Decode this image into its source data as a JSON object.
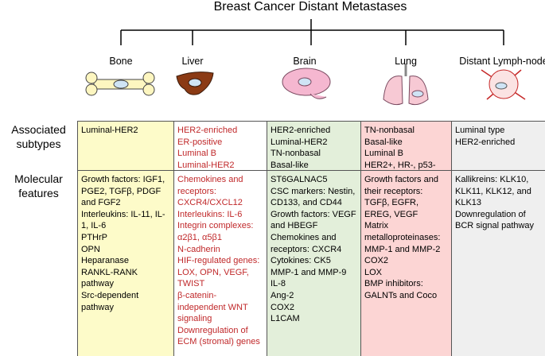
{
  "title": "Breast Cancer Distant Metastases",
  "organs": [
    "Bone",
    "Liver",
    "Brain",
    "Lung",
    "Distant Lymph-node"
  ],
  "rows": [
    {
      "label": "Associated subtypes",
      "cells": [
        [
          "Luminal-HER2"
        ],
        [
          "HER2-enriched",
          "ER-positive",
          "Luminal B",
          "Luminal-HER2"
        ],
        [
          "HER2-enriched",
          "Luminal-HER2",
          "TN-nonbasal",
          "Basal-like"
        ],
        [
          "TN-nonbasal",
          "Basal-like",
          "Luminal B",
          "HER2+, HR-, p53-"
        ],
        [
          "Luminal type",
          "HER2-enriched"
        ]
      ]
    },
    {
      "label": "Molecular features",
      "cells": [
        [
          "Growth factors: IGF1, PGE2, TGFβ, PDGF and FGF2",
          "Interleukins: IL-11, IL-1, IL-6",
          "PTHrP",
          "OPN",
          "Heparanase",
          "RANKL-RANK pathway",
          "Src-dependent pathway"
        ],
        [
          "Chemokines and receptors: CXCR4/CXCL12",
          "Interleukins: IL-6",
          "Integrin complexes: α2β1, α5β1",
          "N-cadherin",
          "HIF-regulated genes: LOX, OPN, VEGF, TWIST",
          "β-catenin-independent WNT signaling",
          "Downregulation of ECM (stromal) genes"
        ],
        [
          "ST6GALNAC5",
          "CSC markers: Nestin, CD133, and CD44",
          "Growth factors: VEGF and HBEGF",
          "Chemokines and receptors: CXCR4",
          "Cytokines: CK5",
          "MMP-1 and MMP-9",
          "IL-8",
          "Ang-2",
          "COX2",
          "L1CAM"
        ],
        [
          "Growth factors and their receptors: TGFβ, EGFR, EREG, VEGF",
          "Matrix metalloproteinases: MMP-1 and MMP-2",
          "COX2",
          "LOX",
          "BMP inhibitors: GALNTs and Coco"
        ],
        [
          "Kallikreins: KLK10, KLK11, KLK12, and KLK13",
          "Downregulation of BCR signal pathway"
        ]
      ]
    }
  ]
}
